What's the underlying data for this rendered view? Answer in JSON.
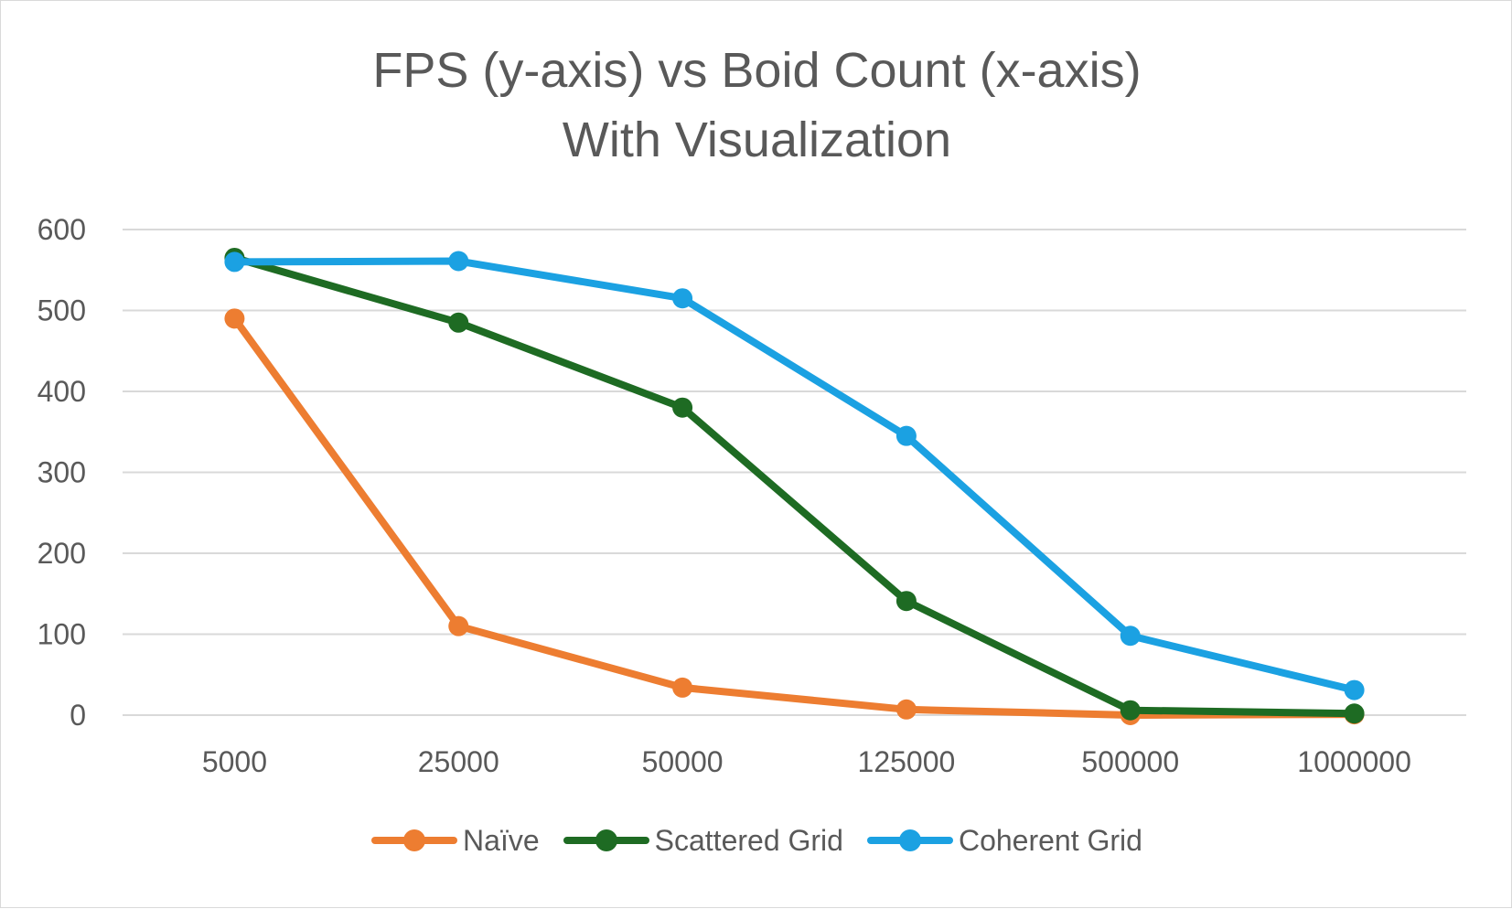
{
  "chart_data": {
    "type": "line",
    "title": [
      "FPS (y-axis) vs Boid Count (x-axis)",
      "With Visualization"
    ],
    "categories": [
      "5000",
      "25000",
      "50000",
      "125000",
      "500000",
      "1000000"
    ],
    "series": [
      {
        "name": "Naïve",
        "color": "#ed7d31",
        "values": [
          490,
          110,
          34,
          7,
          0,
          1
        ]
      },
      {
        "name": "Scattered Grid",
        "color": "#1e6b23",
        "values": [
          565,
          485,
          380,
          141,
          6,
          2
        ]
      },
      {
        "name": "Coherent Grid",
        "color": "#1ba1e2",
        "values": [
          560,
          561,
          515,
          345,
          98,
          31
        ]
      }
    ],
    "ylim": [
      0,
      600
    ],
    "yticks": [
      0,
      100,
      200,
      300,
      400,
      500,
      600
    ],
    "grid": true,
    "legend": "bottom"
  }
}
